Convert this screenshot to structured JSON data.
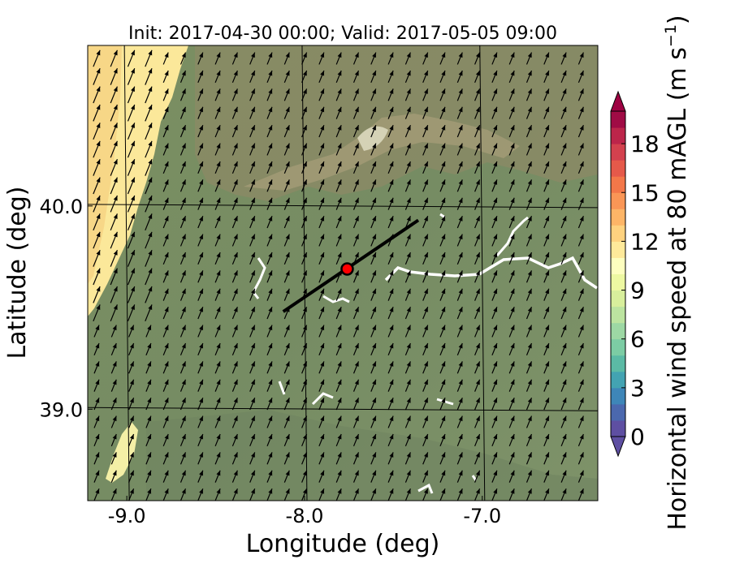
{
  "chart_data": {
    "type": "heatmap",
    "title": "Init: 2017-04-30 00:00; Valid: 2017-05-05 09:00",
    "xlabel": "Longitude (deg)",
    "ylabel": "Latitude (deg)",
    "xlim": [
      -9.22,
      -6.35
    ],
    "ylim": [
      38.55,
      40.79
    ],
    "xticks": [
      -9.0,
      -8.0,
      -7.0
    ],
    "xtick_labels": [
      "-9.0",
      "-8.0",
      "-7.0"
    ],
    "yticks": [
      39.0,
      40.0
    ],
    "ytick_labels": [
      "39.0",
      "40.0"
    ],
    "grid": true,
    "colorbar": {
      "label": "Horizontal wind speed at 80 mAGL (m s",
      "label_exponent": "−1",
      "label_close": ")",
      "levels": [
        0,
        1,
        2,
        3,
        4,
        5,
        6,
        7,
        8,
        9,
        10,
        11,
        12,
        13,
        14,
        15,
        16,
        17,
        18,
        19,
        20
      ],
      "tick_values": [
        0,
        3,
        6,
        9,
        12,
        15,
        18
      ],
      "tick_labels": [
        "0",
        "3",
        "6",
        "9",
        "12",
        "15",
        "18"
      ],
      "extend": "both",
      "colors": [
        "#5e4fa2",
        "#4b68ae",
        "#3e86b8",
        "#43a3b2",
        "#5bbaa5",
        "#7ccca4",
        "#9dd8a4",
        "#bce4a0",
        "#d8ef9c",
        "#edf8a2",
        "#fdfebf",
        "#fee99a",
        "#fed27f",
        "#fdb567",
        "#fa9656",
        "#f37749",
        "#e5594a",
        "#d3414e",
        "#bc254a",
        "#a00b45"
      ],
      "over_color": "#9e0142",
      "under_color": "#5e4fa2"
    },
    "wind_direction": "SSW to NNE (arrows point north-northeast)",
    "coastal_strip_wind": "9-13 m s-1",
    "inland_wind": "about 1-4 m s-1",
    "transect": {
      "start": [
        -8.12,
        39.48
      ],
      "end": [
        -7.36,
        39.93
      ]
    },
    "site_marker": {
      "lon": -7.76,
      "lat": 39.69,
      "color": "#ff0000"
    }
  }
}
